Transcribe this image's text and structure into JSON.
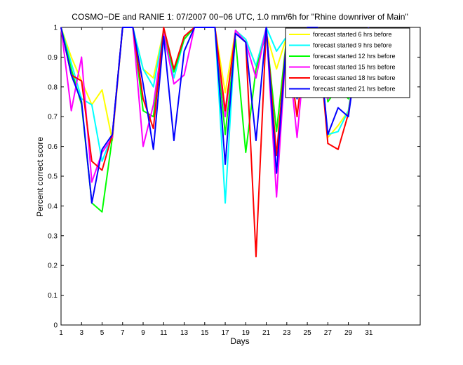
{
  "chart_data": {
    "type": "line",
    "title": "COSMO−DE and RANIE 1: 07/2007 00−06 UTC, 1.0 mm/6h for \"Rhine downriver of Main\"",
    "xlabel": "Days",
    "ylabel": "Percent correct score",
    "xlim": [
      1,
      36
    ],
    "ylim": [
      0,
      1
    ],
    "xticks": [
      1,
      3,
      5,
      7,
      9,
      11,
      13,
      15,
      17,
      19,
      21,
      23,
      25,
      27,
      29,
      31
    ],
    "yticks": [
      0,
      0.1,
      0.2,
      0.3,
      0.4,
      0.5,
      0.6,
      0.7,
      0.8,
      0.9,
      1
    ],
    "ytick_labels": [
      "0",
      "0.1",
      "0.2",
      "0.3",
      "0.4",
      "0.5",
      "0.6",
      "0.7",
      "0.8",
      "0.9",
      "1"
    ],
    "legend_position": "top-right",
    "grid": false,
    "x": [
      1,
      2,
      3,
      4,
      5,
      6,
      7,
      8,
      9,
      10,
      11,
      12,
      13,
      14,
      15,
      16,
      17,
      18,
      19,
      20,
      21,
      22,
      23,
      24,
      25,
      26,
      27,
      28,
      29,
      30,
      31
    ],
    "series": [
      {
        "name": "forecast started 6 hrs before",
        "color": "#ffff00",
        "values": [
          1,
          0.9,
          0.82,
          0.74,
          0.79,
          0.62,
          1,
          1,
          0.86,
          0.83,
          0.99,
          0.86,
          0.96,
          1,
          1,
          1,
          0.78,
          0.99,
          0.96,
          0.87,
          0.98,
          0.86,
          0.97,
          0.86,
          1,
          1,
          0.63,
          0.67,
          0.72,
          0.95,
          1
        ]
      },
      {
        "name": "forecast started 9 hrs before",
        "color": "#00ffff",
        "values": [
          1,
          0.88,
          0.76,
          0.74,
          0.55,
          0.64,
          1,
          1,
          0.86,
          0.8,
          0.99,
          0.83,
          0.96,
          1,
          1,
          1,
          0.41,
          0.99,
          0.96,
          0.87,
          1,
          0.92,
          0.97,
          0.84,
          1,
          1,
          0.64,
          0.65,
          0.72,
          0.95,
          1
        ]
      },
      {
        "name": "forecast started 12 hrs before",
        "color": "#00ff00",
        "values": [
          1,
          0.86,
          0.74,
          0.41,
          0.38,
          0.63,
          1,
          1,
          0.72,
          0.7,
          0.99,
          0.85,
          0.96,
          1,
          1,
          1,
          0.64,
          0.96,
          0.58,
          0.86,
          0.98,
          0.65,
          0.97,
          0.84,
          1,
          1,
          0.75,
          0.8,
          0.76,
          0.95,
          1
        ]
      },
      {
        "name": "forecast started 15 hrs before",
        "color": "#ff00ff",
        "values": [
          1,
          0.72,
          0.9,
          0.48,
          0.58,
          0.63,
          1,
          1,
          0.6,
          0.74,
          0.98,
          0.81,
          0.84,
          1,
          1,
          1,
          0.7,
          0.99,
          0.95,
          0.83,
          1,
          0.43,
          0.97,
          0.63,
          1,
          1,
          0.76,
          0.81,
          0.78,
          0.95,
          1
        ]
      },
      {
        "name": "forecast started 18 hrs before",
        "color": "#ff0000",
        "values": [
          1,
          0.84,
          0.82,
          0.55,
          0.52,
          0.64,
          1,
          1,
          0.76,
          0.66,
          1,
          0.86,
          0.97,
          1,
          1,
          1,
          0.72,
          0.98,
          0.95,
          0.23,
          1,
          0.57,
          0.97,
          0.7,
          1,
          1,
          0.61,
          0.59,
          0.71,
          0.94,
          1
        ]
      },
      {
        "name": "forecast started 21 hrs before",
        "color": "#0000ff",
        "values": [
          1,
          0.84,
          0.75,
          0.41,
          0.59,
          0.64,
          1,
          1,
          0.81,
          0.59,
          0.97,
          0.62,
          0.92,
          1,
          1,
          1,
          0.54,
          0.98,
          0.95,
          0.62,
          1,
          0.51,
          0.97,
          0.76,
          1,
          1,
          0.64,
          0.73,
          0.7,
          0.95,
          1
        ]
      }
    ]
  }
}
